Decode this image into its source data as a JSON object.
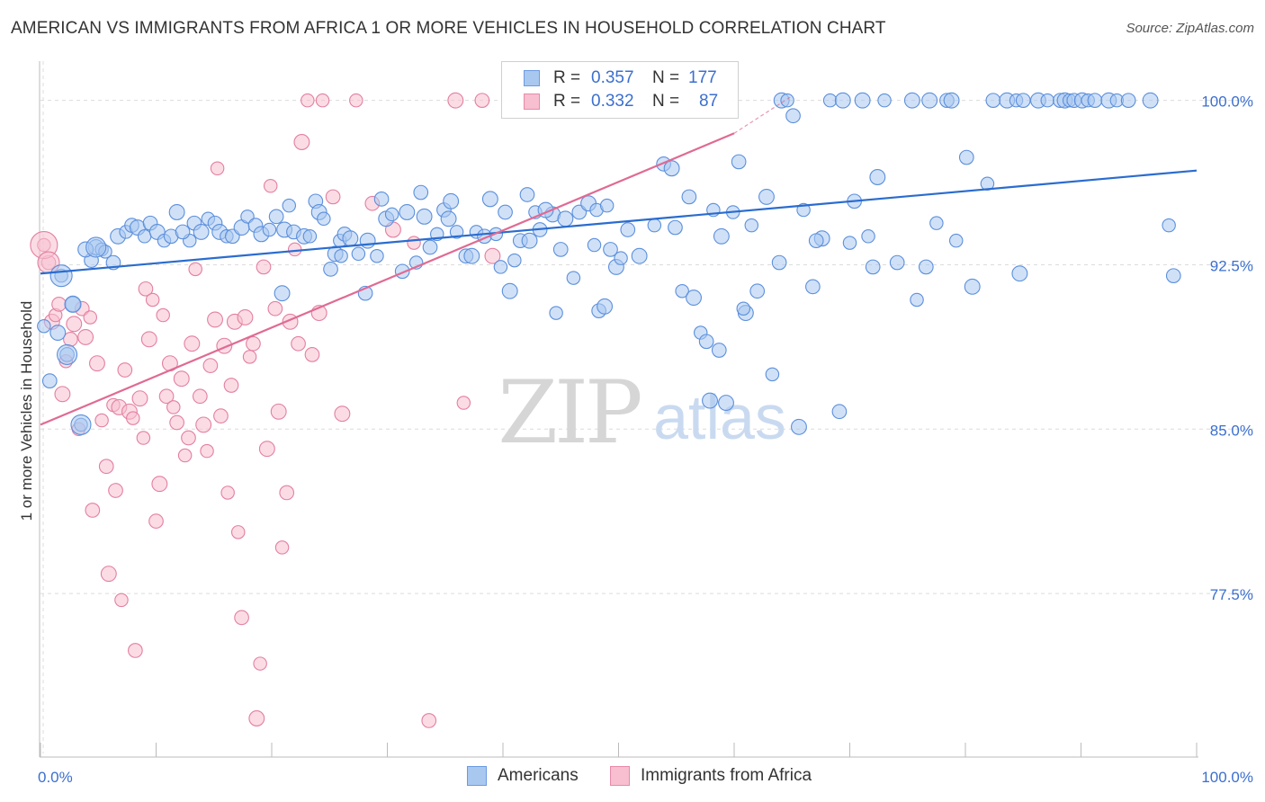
{
  "header": {
    "title": "AMERICAN VS IMMIGRANTS FROM AFRICA 1 OR MORE VEHICLES IN HOUSEHOLD CORRELATION CHART",
    "source": "Source: ZipAtlas.com"
  },
  "watermark": {
    "zip": "ZIP",
    "atlas": "atlas"
  },
  "legend_stats": [
    {
      "r_label": "R =",
      "r_value": "0.357",
      "n_label": "N =",
      "n_value": "177",
      "color": "#a9c8f0",
      "border": "#6b9be0"
    },
    {
      "r_label": "R =",
      "r_value": "0.332",
      "n_label": "N =",
      "n_value": "87",
      "color": "#f7bfd0",
      "border": "#e88aa8"
    }
  ],
  "colors": {
    "americans_fill": "#a9c8f0",
    "americans_stroke": "#5b8fdc",
    "americans_line": "#2a6ccf",
    "africa_fill": "#f7bfd0",
    "africa_stroke": "#e37fa0",
    "africa_line": "#e06a93",
    "grid": "#dcdcdc",
    "tick_label": "#3b6fcf"
  },
  "chart_data": {
    "type": "scatter",
    "title": "AMERICAN VS IMMIGRANTS FROM AFRICA 1 OR MORE VEHICLES IN HOUSEHOLD CORRELATION CHART",
    "xlabel": "",
    "ylabel": "1 or more Vehicles in Household",
    "xlim": [
      0,
      100
    ],
    "ylim": [
      70.2,
      101.3
    ],
    "x_tick_labels": [
      "0.0%",
      "100.0%"
    ],
    "y_ticks": [
      77.5,
      85.0,
      92.5,
      100.0
    ],
    "y_tick_labels": [
      "77.5%",
      "85.0%",
      "92.5%",
      "100.0%"
    ],
    "grid": true,
    "legend_position": "bottom",
    "series": [
      {
        "name": "Americans",
        "trend": {
          "x": [
            0,
            100
          ],
          "y": [
            92.1,
            96.8
          ]
        },
        "points": [
          [
            0.3,
            89.7
          ],
          [
            0.8,
            87.2
          ],
          [
            1.5,
            89.4
          ],
          [
            1.8,
            92.0
          ],
          [
            2.3,
            88.4
          ],
          [
            2.8,
            90.7
          ],
          [
            3.5,
            85.2
          ],
          [
            4.4,
            92.7
          ],
          [
            4.8,
            93.3
          ],
          [
            5.3,
            93.2
          ],
          [
            6.3,
            92.6
          ],
          [
            6.7,
            93.8
          ],
          [
            7.4,
            94.0
          ],
          [
            7.9,
            94.3
          ],
          [
            8.4,
            94.2
          ],
          [
            9.0,
            93.8
          ],
          [
            9.5,
            94.4
          ],
          [
            10.1,
            94.0
          ],
          [
            10.7,
            93.6
          ],
          [
            11.3,
            93.8
          ],
          [
            11.8,
            94.9
          ],
          [
            12.9,
            93.6
          ],
          [
            13.3,
            94.4
          ],
          [
            13.9,
            94.0
          ],
          [
            14.5,
            94.6
          ],
          [
            15.1,
            94.4
          ],
          [
            15.5,
            94.0
          ],
          [
            16.1,
            93.8
          ],
          [
            16.6,
            93.8
          ],
          [
            17.4,
            94.2
          ],
          [
            17.9,
            94.7
          ],
          [
            18.6,
            94.3
          ],
          [
            19.1,
            93.9
          ],
          [
            19.8,
            94.1
          ],
          [
            20.4,
            94.7
          ],
          [
            21.1,
            94.1
          ],
          [
            21.5,
            95.2
          ],
          [
            21.9,
            94.0
          ],
          [
            22.8,
            93.8
          ],
          [
            23.3,
            93.8
          ],
          [
            23.8,
            95.4
          ],
          [
            24.1,
            94.9
          ],
          [
            24.5,
            94.6
          ],
          [
            25.1,
            92.3
          ],
          [
            25.5,
            93.0
          ],
          [
            25.9,
            93.6
          ],
          [
            26.3,
            93.9
          ],
          [
            26.8,
            93.7
          ],
          [
            27.5,
            93.0
          ],
          [
            28.1,
            91.2
          ],
          [
            28.3,
            93.6
          ],
          [
            29.1,
            92.9
          ],
          [
            29.5,
            95.5
          ],
          [
            29.9,
            94.6
          ],
          [
            30.4,
            94.8
          ],
          [
            31.3,
            92.2
          ],
          [
            31.7,
            94.9
          ],
          [
            32.5,
            92.6
          ],
          [
            32.9,
            95.8
          ],
          [
            33.2,
            94.7
          ],
          [
            34.3,
            93.9
          ],
          [
            34.9,
            95.0
          ],
          [
            35.3,
            94.6
          ],
          [
            36.0,
            94.0
          ],
          [
            36.8,
            92.9
          ],
          [
            37.3,
            92.9
          ],
          [
            37.7,
            94.0
          ],
          [
            38.4,
            93.8
          ],
          [
            38.9,
            95.5
          ],
          [
            39.4,
            93.9
          ],
          [
            40.2,
            94.9
          ],
          [
            40.6,
            91.3
          ],
          [
            41.0,
            92.7
          ],
          [
            41.5,
            93.6
          ],
          [
            42.3,
            93.6
          ],
          [
            42.8,
            94.9
          ],
          [
            43.2,
            94.1
          ],
          [
            44.3,
            94.8
          ],
          [
            44.6,
            90.3
          ],
          [
            45.0,
            93.2
          ],
          [
            45.4,
            94.6
          ],
          [
            46.1,
            91.9
          ],
          [
            46.6,
            94.9
          ],
          [
            47.4,
            95.3
          ],
          [
            48.1,
            95.0
          ],
          [
            48.3,
            90.4
          ],
          [
            48.8,
            90.6
          ],
          [
            49.0,
            95.2
          ],
          [
            49.3,
            93.2
          ],
          [
            49.8,
            92.4
          ],
          [
            50.2,
            92.8
          ],
          [
            50.8,
            94.1
          ],
          [
            51.8,
            92.9
          ],
          [
            53.1,
            94.3
          ],
          [
            53.9,
            97.1
          ],
          [
            54.6,
            96.9
          ],
          [
            55.5,
            91.3
          ],
          [
            56.1,
            95.6
          ],
          [
            56.5,
            91.0
          ],
          [
            57.1,
            89.4
          ],
          [
            57.6,
            89.0
          ],
          [
            57.9,
            86.3
          ],
          [
            58.2,
            95.0
          ],
          [
            58.7,
            88.6
          ],
          [
            59.3,
            86.2
          ],
          [
            59.9,
            94.9
          ],
          [
            60.4,
            97.2
          ],
          [
            61.0,
            90.3
          ],
          [
            61.5,
            94.3
          ],
          [
            62.0,
            91.3
          ],
          [
            62.8,
            95.6
          ],
          [
            63.3,
            87.5
          ],
          [
            63.9,
            92.6
          ],
          [
            64.1,
            100.0
          ],
          [
            64.6,
            100.0
          ],
          [
            65.1,
            99.3
          ],
          [
            65.6,
            85.1
          ],
          [
            66.0,
            95.0
          ],
          [
            66.8,
            91.5
          ],
          [
            67.6,
            93.7
          ],
          [
            68.3,
            100.0
          ],
          [
            69.1,
            85.8
          ],
          [
            69.4,
            100.0
          ],
          [
            70.0,
            93.5
          ],
          [
            70.4,
            95.4
          ],
          [
            71.1,
            100.0
          ],
          [
            71.6,
            93.8
          ],
          [
            72.0,
            92.4
          ],
          [
            72.4,
            96.5
          ],
          [
            73.0,
            100.0
          ],
          [
            74.1,
            92.6
          ],
          [
            75.4,
            100.0
          ],
          [
            75.8,
            90.9
          ],
          [
            76.6,
            92.4
          ],
          [
            76.9,
            100.0
          ],
          [
            77.5,
            94.4
          ],
          [
            78.4,
            100.0
          ],
          [
            78.8,
            100.0
          ],
          [
            79.2,
            93.6
          ],
          [
            80.1,
            97.4
          ],
          [
            80.6,
            91.5
          ],
          [
            81.9,
            96.2
          ],
          [
            82.4,
            100.0
          ],
          [
            83.6,
            100.0
          ],
          [
            84.4,
            100.0
          ],
          [
            85.0,
            100.0
          ],
          [
            86.3,
            100.0
          ],
          [
            87.1,
            100.0
          ],
          [
            88.2,
            100.0
          ],
          [
            88.6,
            100.0
          ],
          [
            89.0,
            100.0
          ],
          [
            89.4,
            100.0
          ],
          [
            90.1,
            100.0
          ],
          [
            90.6,
            100.0
          ],
          [
            91.2,
            100.0
          ],
          [
            92.4,
            100.0
          ],
          [
            93.1,
            100.0
          ],
          [
            94.1,
            100.0
          ],
          [
            96.0,
            100.0
          ],
          [
            97.6,
            94.3
          ],
          [
            98.0,
            92.0
          ],
          [
            3.9,
            93.2
          ],
          [
            5.6,
            93.1
          ],
          [
            12.3,
            94.0
          ],
          [
            20.9,
            91.2
          ],
          [
            26.0,
            92.9
          ],
          [
            33.7,
            93.3
          ],
          [
            35.5,
            95.4
          ],
          [
            39.8,
            92.4
          ],
          [
            42.1,
            95.7
          ],
          [
            43.7,
            95.0
          ],
          [
            47.9,
            93.4
          ],
          [
            54.9,
            94.2
          ],
          [
            58.9,
            93.8
          ],
          [
            60.8,
            90.5
          ],
          [
            67.1,
            93.6
          ],
          [
            84.7,
            92.1
          ]
        ]
      },
      {
        "name": "Immigrants from Africa",
        "trend": {
          "x": [
            0,
            60,
            65
          ],
          "y": [
            85.2,
            98.5,
            100.2
          ]
        },
        "points": [
          [
            0.3,
            93.4
          ],
          [
            0.7,
            92.6
          ],
          [
            1.0,
            89.9
          ],
          [
            1.3,
            90.2
          ],
          [
            1.6,
            90.7
          ],
          [
            1.9,
            86.6
          ],
          [
            2.2,
            88.1
          ],
          [
            2.6,
            89.1
          ],
          [
            2.9,
            89.8
          ],
          [
            3.3,
            85.0
          ],
          [
            3.6,
            90.5
          ],
          [
            3.9,
            89.2
          ],
          [
            4.3,
            90.1
          ],
          [
            4.5,
            81.3
          ],
          [
            4.9,
            88.0
          ],
          [
            5.3,
            85.4
          ],
          [
            5.7,
            83.3
          ],
          [
            5.9,
            78.4
          ],
          [
            6.3,
            86.1
          ],
          [
            6.5,
            82.2
          ],
          [
            6.8,
            86.0
          ],
          [
            7.0,
            77.2
          ],
          [
            7.3,
            87.7
          ],
          [
            7.7,
            85.8
          ],
          [
            8.0,
            85.5
          ],
          [
            8.2,
            74.9
          ],
          [
            8.6,
            86.4
          ],
          [
            8.9,
            84.6
          ],
          [
            9.1,
            91.4
          ],
          [
            9.4,
            89.1
          ],
          [
            9.7,
            90.9
          ],
          [
            10.0,
            80.8
          ],
          [
            10.3,
            82.5
          ],
          [
            10.6,
            90.2
          ],
          [
            10.9,
            86.5
          ],
          [
            11.2,
            88.0
          ],
          [
            11.5,
            86.0
          ],
          [
            11.8,
            85.3
          ],
          [
            12.2,
            87.3
          ],
          [
            12.5,
            83.8
          ],
          [
            12.8,
            84.6
          ],
          [
            13.1,
            88.9
          ],
          [
            13.4,
            92.3
          ],
          [
            13.8,
            86.5
          ],
          [
            14.1,
            85.2
          ],
          [
            14.4,
            84.0
          ],
          [
            14.7,
            87.9
          ],
          [
            15.1,
            90.0
          ],
          [
            15.3,
            96.9
          ],
          [
            15.6,
            85.6
          ],
          [
            15.9,
            88.8
          ],
          [
            16.2,
            82.1
          ],
          [
            16.5,
            87.0
          ],
          [
            16.8,
            89.9
          ],
          [
            17.1,
            80.3
          ],
          [
            17.4,
            76.4
          ],
          [
            17.7,
            90.1
          ],
          [
            18.1,
            88.3
          ],
          [
            18.4,
            88.9
          ],
          [
            18.7,
            71.8
          ],
          [
            19.0,
            74.3
          ],
          [
            19.3,
            92.4
          ],
          [
            19.6,
            84.1
          ],
          [
            19.9,
            96.1
          ],
          [
            20.3,
            90.5
          ],
          [
            20.6,
            85.8
          ],
          [
            20.9,
            79.6
          ],
          [
            21.3,
            82.1
          ],
          [
            21.6,
            89.9
          ],
          [
            22.0,
            93.2
          ],
          [
            22.3,
            88.9
          ],
          [
            22.6,
            98.1
          ],
          [
            23.1,
            100.0
          ],
          [
            23.5,
            88.4
          ],
          [
            24.1,
            90.3
          ],
          [
            24.4,
            100.0
          ],
          [
            25.3,
            95.6
          ],
          [
            26.1,
            85.7
          ],
          [
            27.3,
            100.0
          ],
          [
            28.7,
            95.3
          ],
          [
            30.5,
            94.1
          ],
          [
            32.3,
            93.5
          ],
          [
            33.6,
            71.7
          ],
          [
            35.9,
            100.0
          ],
          [
            36.6,
            86.2
          ],
          [
            38.2,
            100.0
          ],
          [
            39.1,
            92.9
          ]
        ]
      }
    ]
  },
  "bottom_legend": [
    {
      "label": "Americans"
    },
    {
      "label": "Immigrants from Africa"
    }
  ]
}
